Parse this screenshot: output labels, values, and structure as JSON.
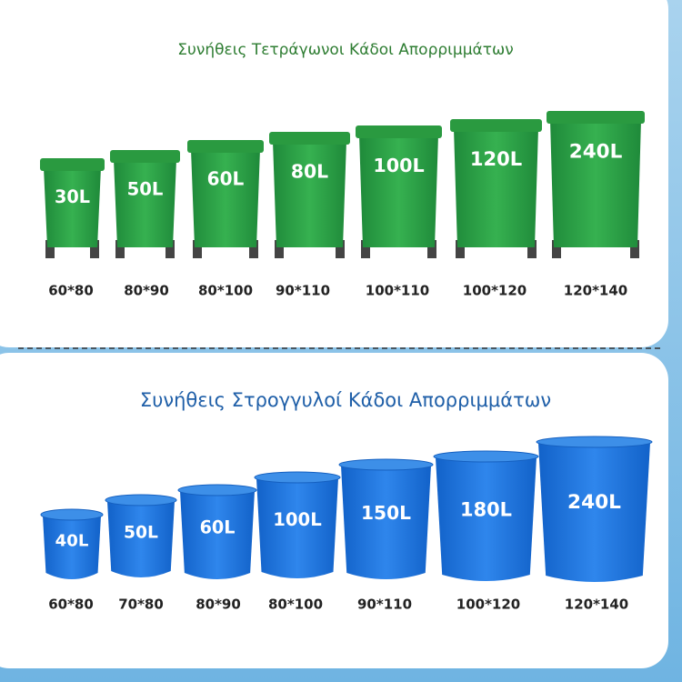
{
  "square_bins": {
    "title": "Συνήθεις Τετράγωνοι Κάδοι Απορριμμάτων",
    "items": [
      {
        "capacity": "30L",
        "size": "60*80"
      },
      {
        "capacity": "50L",
        "size": "80*90"
      },
      {
        "capacity": "60L",
        "size": "80*100"
      },
      {
        "capacity": "80L",
        "size": "90*110"
      },
      {
        "capacity": "100L",
        "size": "100*110"
      },
      {
        "capacity": "120L",
        "size": "100*120"
      },
      {
        "capacity": "240L",
        "size": "120*140"
      }
    ]
  },
  "round_bins": {
    "title": "Συνήθεις Στρογγυλοί Κάδοι Απορριμμάτων",
    "items": [
      {
        "capacity": "40L",
        "size": "60*80"
      },
      {
        "capacity": "50L",
        "size": "70*80"
      },
      {
        "capacity": "60L",
        "size": "80*90"
      },
      {
        "capacity": "100L",
        "size": "80*100"
      },
      {
        "capacity": "150L",
        "size": "90*110"
      },
      {
        "capacity": "180L",
        "size": "100*120"
      },
      {
        "capacity": "240L",
        "size": "120*140"
      }
    ]
  }
}
